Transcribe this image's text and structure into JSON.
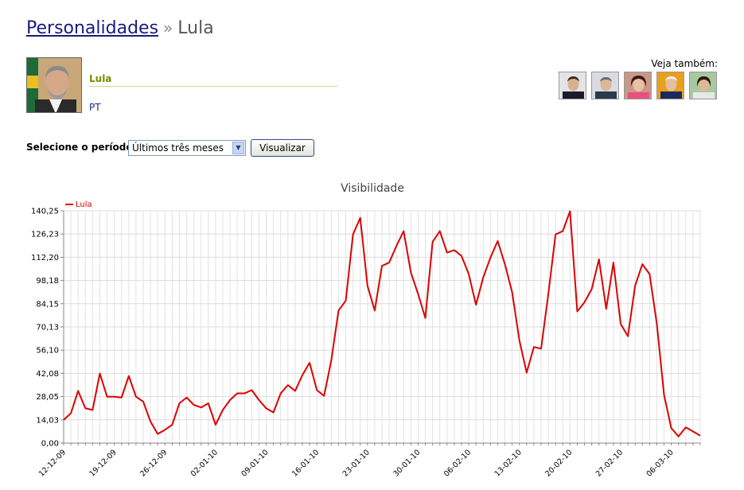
{
  "breadcrumb": {
    "parent": "Personalidades",
    "separator": "»",
    "current": "Lula"
  },
  "profile": {
    "name": "Lula",
    "party": "PT"
  },
  "see_also": {
    "label": "Veja também:",
    "people": [
      "person-1",
      "person-2",
      "person-3",
      "person-4",
      "person-5"
    ]
  },
  "period": {
    "label": "Selecione o período:",
    "selected": "Últimos três meses",
    "button": "Visualizar"
  },
  "colors": {
    "series": "#dd0000",
    "grid": "#dddddd",
    "link": "#1a1a80",
    "name": "#7a8c00"
  },
  "chart_data": {
    "type": "line",
    "title": "Visibilidade",
    "ylim": [
      0,
      140.25
    ],
    "yticks": [
      "0,00",
      "14,03",
      "28,05",
      "42,08",
      "56,10",
      "70,13",
      "84,15",
      "98,18",
      "112,20",
      "126,23",
      "140,25"
    ],
    "xticks": [
      "12-12-09",
      "19-12-09",
      "26-12-09",
      "02-01-10",
      "09-01-10",
      "16-01-10",
      "23-01-10",
      "30-01-10",
      "06-02-10",
      "13-02-10",
      "20-02-10",
      "27-02-10",
      "06-03-10"
    ],
    "grid": true,
    "legend": "top-left",
    "series": [
      {
        "name": "Lula",
        "values": [
          14.0,
          18.0,
          31.5,
          21.0,
          20.0,
          42.0,
          28.0,
          28.0,
          27.5,
          40.5,
          28.0,
          25.0,
          13.0,
          5.5,
          8.0,
          11.0,
          24.0,
          27.5,
          23.0,
          21.5,
          24.0,
          11.0,
          20.0,
          26.0,
          30.0,
          30.0,
          32.0,
          26.0,
          21.0,
          18.5,
          30.0,
          35.0,
          31.5,
          41.0,
          48.5,
          32.0,
          28.5,
          50.0,
          80.0,
          86.0,
          126.0,
          136.0,
          95.0,
          80.0,
          107.0,
          109.0,
          119.0,
          128.0,
          103.0,
          90.0,
          75.5,
          121.5,
          128.0,
          115.0,
          116.5,
          113.0,
          102.0,
          83.5,
          100.0,
          112.0,
          122.0,
          108.0,
          91.0,
          62.0,
          42.5,
          58.0,
          57.0,
          90.0,
          126.0,
          128.0,
          140.0,
          79.5,
          85.0,
          93.0,
          111.0,
          81.0,
          109.0,
          72.0,
          64.5,
          95.0,
          108.0,
          102.0,
          72.0,
          29.0,
          9.0,
          4.0,
          9.5,
          7.0,
          4.5
        ]
      }
    ]
  }
}
